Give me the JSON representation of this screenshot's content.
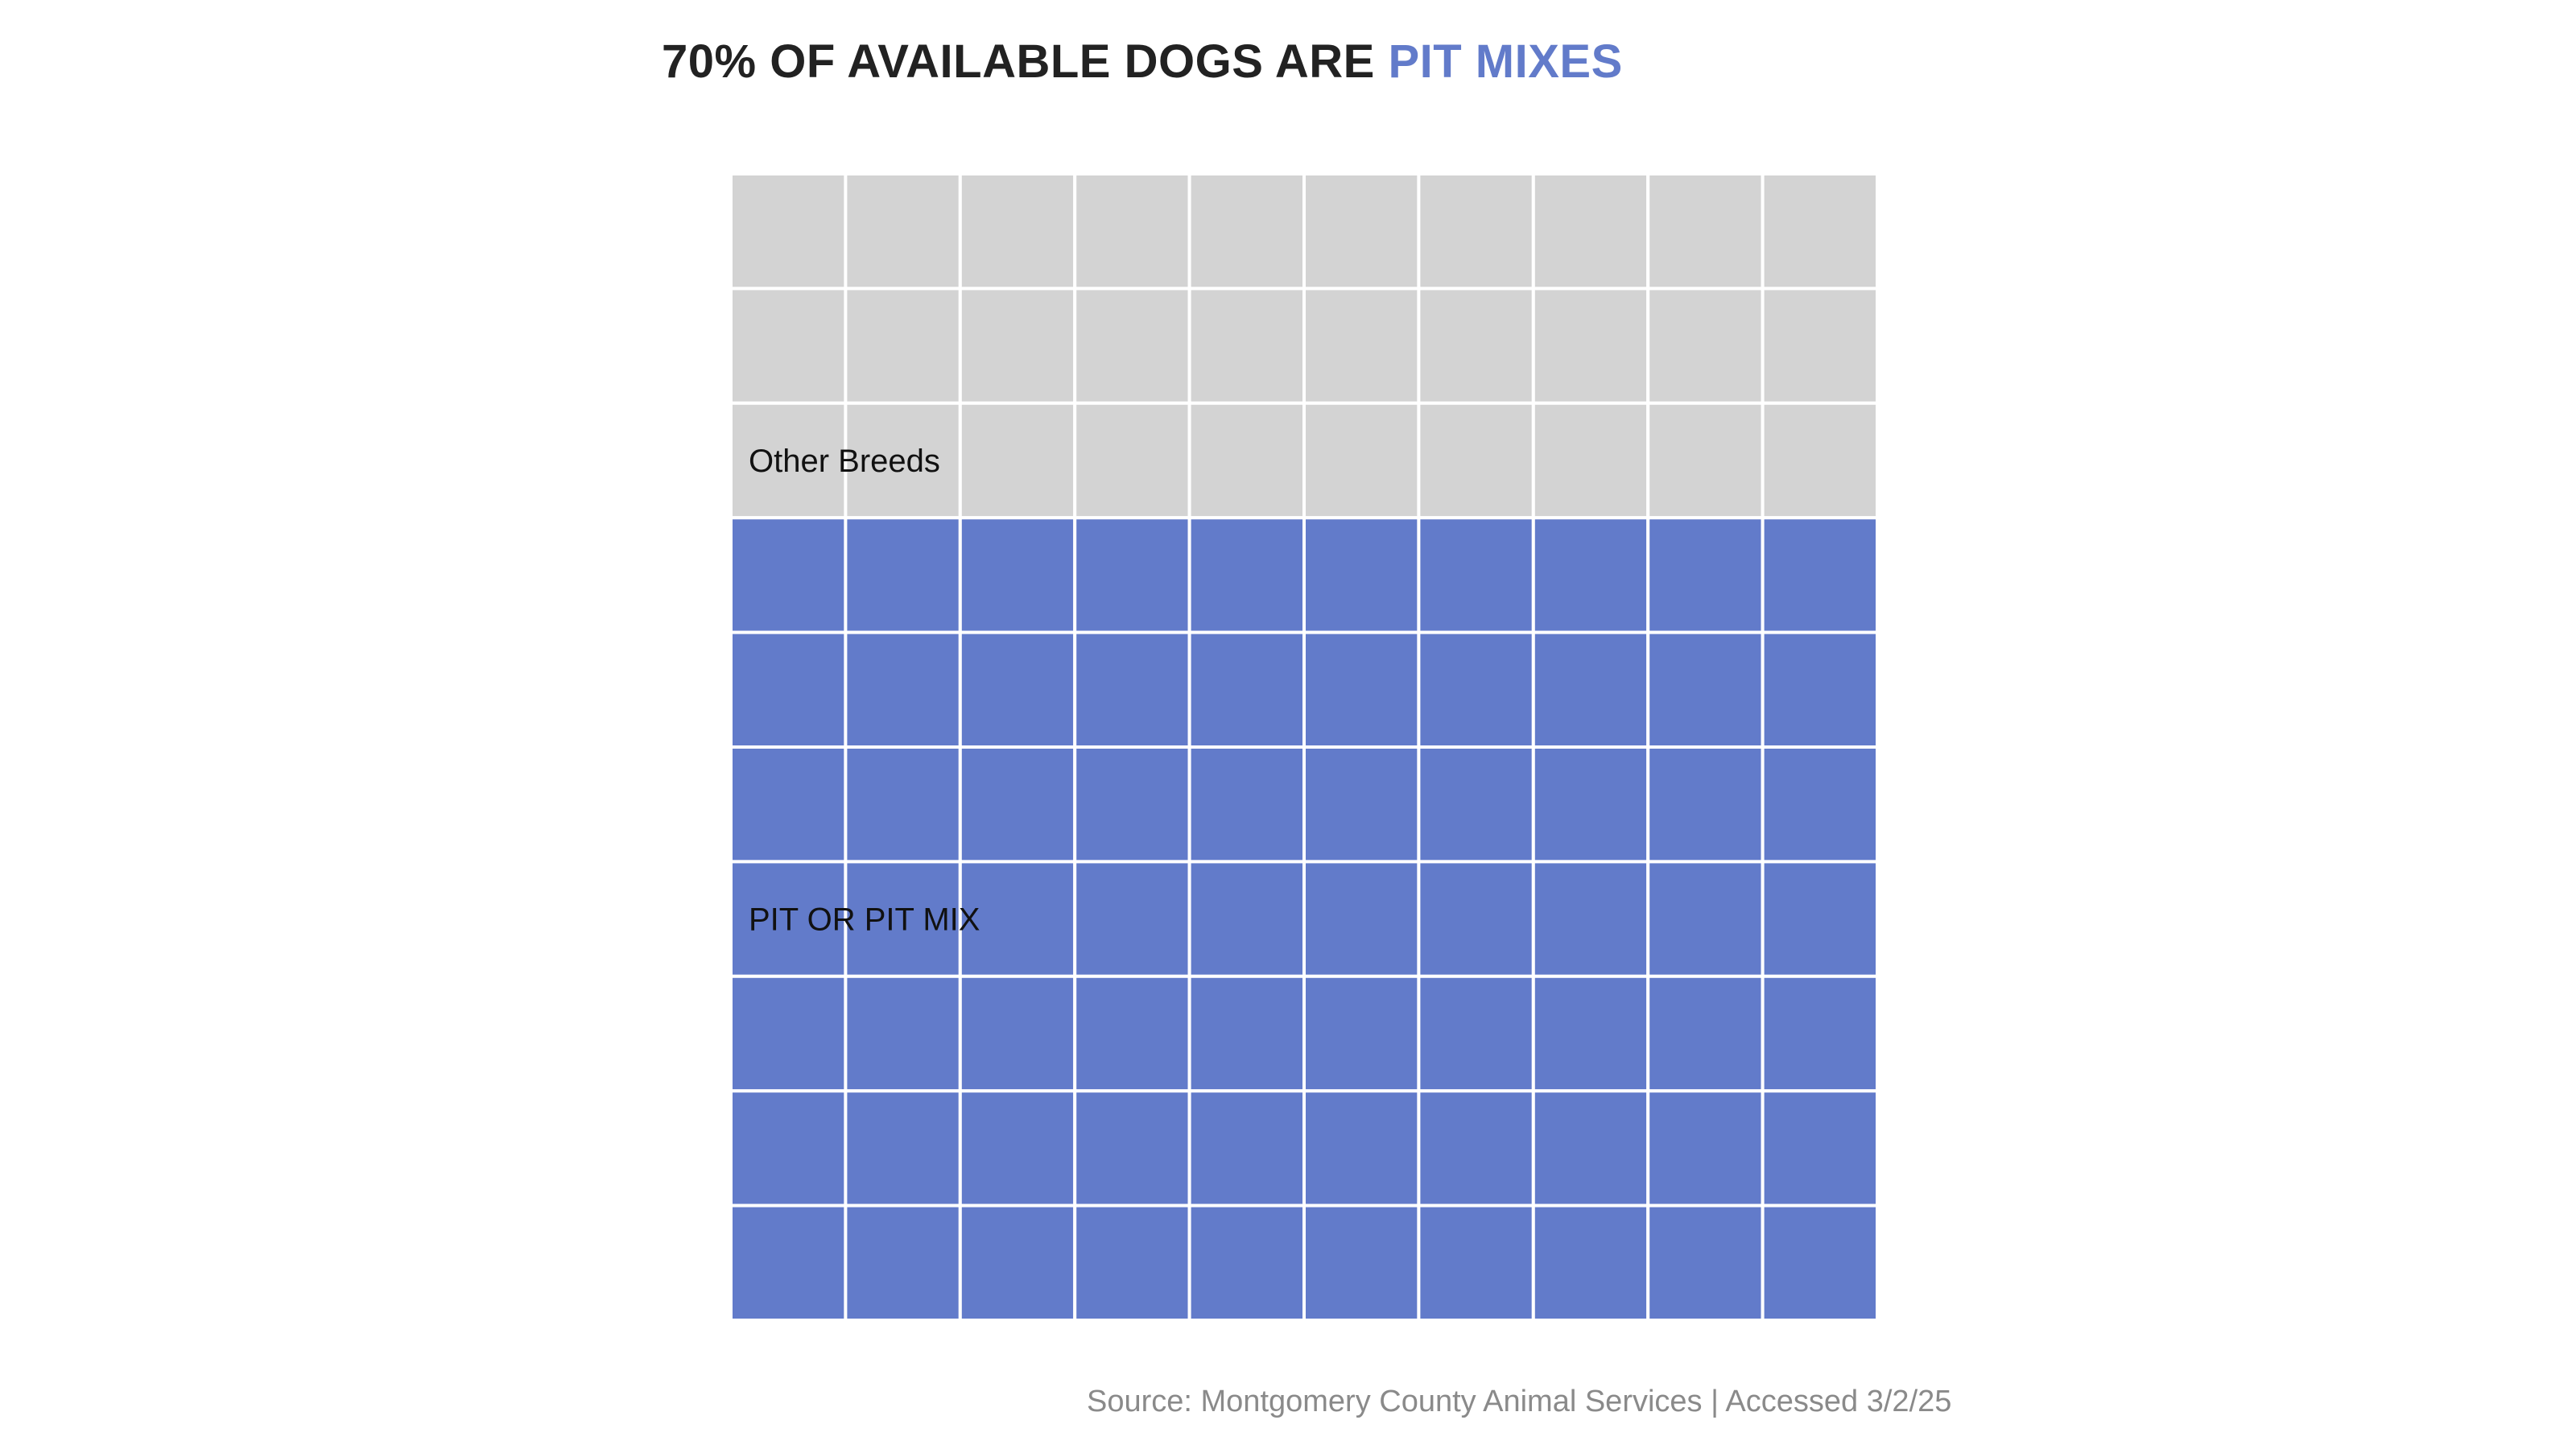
{
  "title": {
    "prefix": "70% OF AVAILABLE DOGS ARE ",
    "highlight": "PIT MIXES"
  },
  "source": "Source: Montgomery County Animal Services | Accessed 3/2/25",
  "chart_data": {
    "type": "waffle",
    "title": "70% OF AVAILABLE DOGS ARE PIT MIXES",
    "grid": {
      "rows": 10,
      "cols": 10
    },
    "units_total": 100,
    "series": [
      {
        "name": "Other Breeds",
        "value": 30,
        "color": "#d3d3d3"
      },
      {
        "name": "PIT OR PIT MIX",
        "value": 70,
        "color": "#627bca"
      }
    ],
    "fill_order": "top-to-bottom, left-to-right",
    "cell_border_color": "#ffffff",
    "legend": "inline-labels"
  }
}
